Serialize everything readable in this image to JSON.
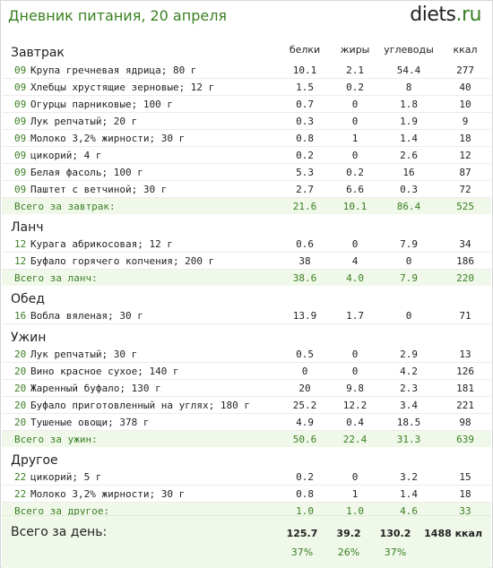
{
  "header": {
    "title": "Дневник питания, 20 апреля",
    "logo_name": "diets",
    "logo_dot": ".",
    "logo_tld": "ru"
  },
  "columns": {
    "protein": "белки",
    "fat": "жиры",
    "carbs": "углеводы",
    "kcal": "ккал"
  },
  "meals": [
    {
      "name": "Завтрак",
      "items": [
        {
          "time": "09:00",
          "food": "Крупа гречневая ядрица; 80 г",
          "protein": "10.1",
          "fat": "2.1",
          "carbs": "54.4",
          "kcal": "277"
        },
        {
          "time": "09:00",
          "food": "Хлебцы хрустящие зерновые; 12 г",
          "protein": "1.5",
          "fat": "0.2",
          "carbs": "8",
          "kcal": "40"
        },
        {
          "time": "09:00",
          "food": "Огурцы парниковые; 100 г",
          "protein": "0.7",
          "fat": "0",
          "carbs": "1.8",
          "kcal": "10"
        },
        {
          "time": "09:00",
          "food": "Лук репчатый; 20 г",
          "protein": "0.3",
          "fat": "0",
          "carbs": "1.9",
          "kcal": "9"
        },
        {
          "time": "09:00",
          "food": "Молоко 3,2% жирности; 30 г",
          "protein": "0.8",
          "fat": "1",
          "carbs": "1.4",
          "kcal": "18"
        },
        {
          "time": "09:00",
          "food": "цикорий; 4 г",
          "protein": "0.2",
          "fat": "0",
          "carbs": "2.6",
          "kcal": "12"
        },
        {
          "time": "09:00",
          "food": "Белая фасоль; 100 г",
          "protein": "5.3",
          "fat": "0.2",
          "carbs": "16",
          "kcal": "87"
        },
        {
          "time": "09:00",
          "food": "Паштет с ветчиной; 30 г",
          "protein": "2.7",
          "fat": "6.6",
          "carbs": "0.3",
          "kcal": "72"
        }
      ],
      "total": {
        "label": "Всего за завтрак:",
        "protein": "21.6",
        "fat": "10.1",
        "carbs": "86.4",
        "kcal": "525"
      }
    },
    {
      "name": "Ланч",
      "items": [
        {
          "time": "12:30",
          "food": "Курага абрикосовая; 12 г",
          "protein": "0.6",
          "fat": "0",
          "carbs": "7.9",
          "kcal": "34"
        },
        {
          "time": "12:30",
          "food": "Буфало горячего копчения; 200 г",
          "protein": "38",
          "fat": "4",
          "carbs": "0",
          "kcal": "186"
        }
      ],
      "total": {
        "label": "Всего за ланч:",
        "protein": "38.6",
        "fat": "4.0",
        "carbs": "7.9",
        "kcal": "220"
      }
    },
    {
      "name": "Обед",
      "items": [
        {
          "time": "16:00",
          "food": "Вобла вяленая; 30 г",
          "protein": "13.9",
          "fat": "1.7",
          "carbs": "0",
          "kcal": "71"
        }
      ],
      "total": null
    },
    {
      "name": "Ужин",
      "items": [
        {
          "time": "20:00",
          "food": "Лук репчатый; 30 г",
          "protein": "0.5",
          "fat": "0",
          "carbs": "2.9",
          "kcal": "13"
        },
        {
          "time": "20:00",
          "food": "Вино красное сухое; 140 г",
          "protein": "0",
          "fat": "0",
          "carbs": "4.2",
          "kcal": "126"
        },
        {
          "time": "20:00",
          "food": "Жаренный буфало; 130 г",
          "protein": "20",
          "fat": "9.8",
          "carbs": "2.3",
          "kcal": "181"
        },
        {
          "time": "20:00",
          "food": "Буфало приготовленный на углях; 180 г",
          "protein": "25.2",
          "fat": "12.2",
          "carbs": "3.4",
          "kcal": "221"
        },
        {
          "time": "20:00",
          "food": "Тушеные овощи; 378 г",
          "protein": "4.9",
          "fat": "0.4",
          "carbs": "18.5",
          "kcal": "98"
        }
      ],
      "total": {
        "label": "Всего за ужин:",
        "protein": "50.6",
        "fat": "22.4",
        "carbs": "31.3",
        "kcal": "639"
      }
    },
    {
      "name": "Другое",
      "items": [
        {
          "time": "22:00",
          "food": "цикорий; 5 г",
          "protein": "0.2",
          "fat": "0",
          "carbs": "3.2",
          "kcal": "15"
        },
        {
          "time": "22:00",
          "food": "Молоко 3,2% жирности; 30 г",
          "protein": "0.8",
          "fat": "1",
          "carbs": "1.4",
          "kcal": "18"
        }
      ],
      "total": {
        "label": "Всего за другое:",
        "protein": "1.0",
        "fat": "1.0",
        "carbs": "4.6",
        "kcal": "33"
      }
    }
  ],
  "day_total": {
    "label": "Всего за день:",
    "protein": "125.7",
    "fat": "39.2",
    "carbs": "130.2",
    "kcal": "1488 ккал",
    "protein_pct": "37%",
    "fat_pct": "26%",
    "carbs_pct": "37%"
  },
  "colors": {
    "accent": "#3a7f22",
    "total_bg": "#f0f8ea",
    "text": "#222222"
  }
}
